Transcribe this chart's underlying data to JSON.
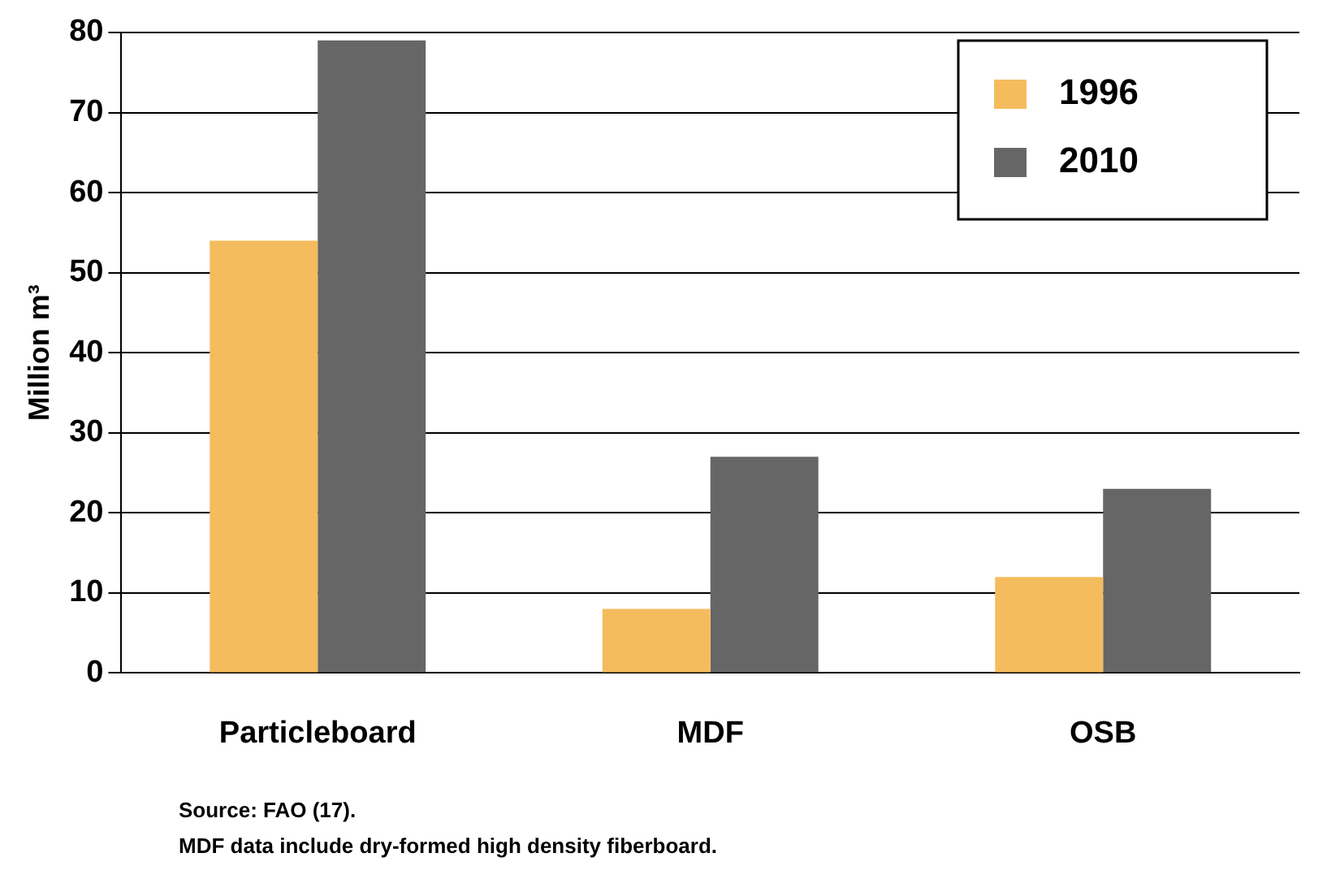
{
  "chart_data": {
    "type": "bar",
    "ylabel": "Million m³",
    "categories": [
      "Particleboard",
      "MDF",
      "OSB"
    ],
    "series": [
      {
        "name": "1996",
        "color": "#f5bc5e",
        "values": [
          54,
          8,
          12
        ]
      },
      {
        "name": "2010",
        "color": "#666666",
        "values": [
          79,
          27,
          23
        ]
      }
    ],
    "ylim": [
      0,
      80
    ],
    "yticks": [
      0,
      10,
      20,
      30,
      40,
      50,
      60,
      70,
      80
    ],
    "grid": "y",
    "legend": "top right",
    "annotations": [
      "Source: FAO (17).",
      "MDF data include dry-formed high density fiberboard."
    ]
  }
}
